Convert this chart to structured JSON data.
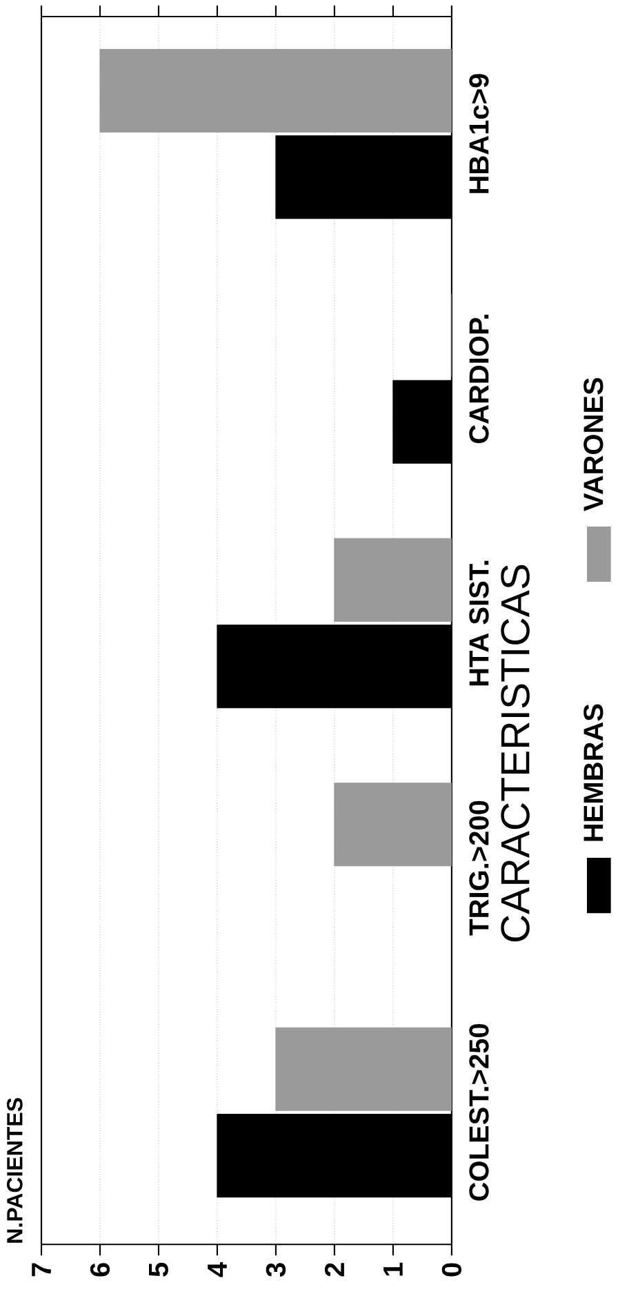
{
  "chart_data": {
    "type": "bar",
    "orientation": "horizontal",
    "ylabel": "CARACTERISTICAS",
    "annotations": [
      "N.PACIENTES"
    ],
    "categories": [
      "HBA1c>9",
      "CARDIOP.",
      "HTA SIST.",
      "TRIG.>200",
      "COLEST.>250"
    ],
    "series": [
      {
        "name": "HEMBRAS",
        "color": "#000000",
        "values": [
          3,
          1,
          4,
          0,
          4
        ]
      },
      {
        "name": "VARONES",
        "color": "#9a9a9a",
        "values": [
          6,
          0,
          2,
          2,
          3
        ]
      }
    ],
    "xlim": [
      7,
      0
    ],
    "xticks": [
      0,
      1,
      2,
      3,
      4,
      5,
      6,
      7
    ],
    "grid": "x",
    "legend": "right"
  }
}
